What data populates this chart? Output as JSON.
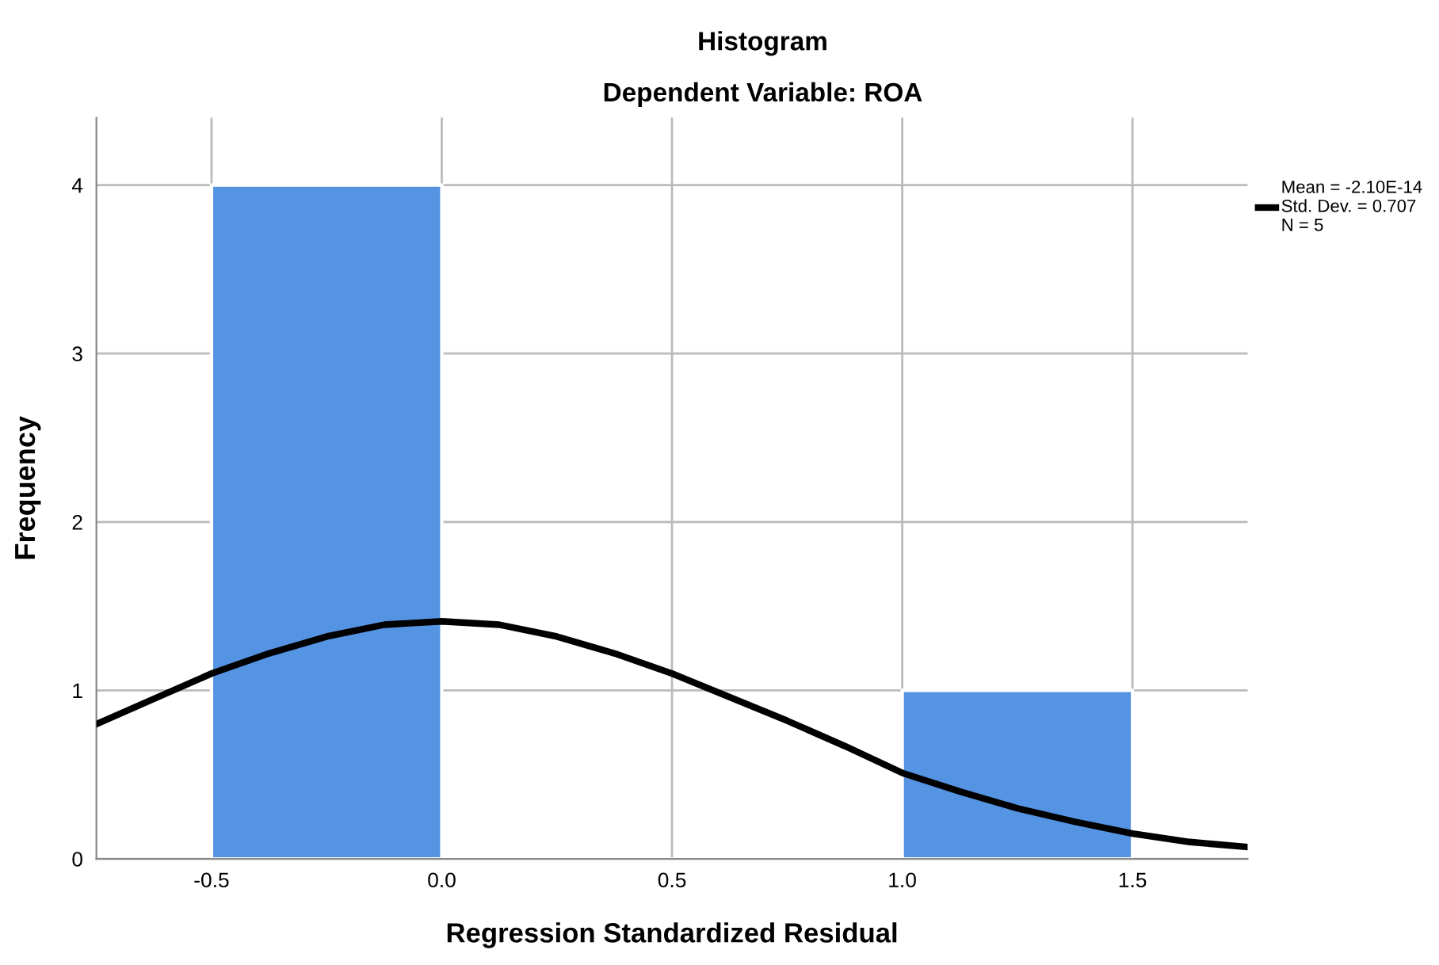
{
  "chart_data": {
    "type": "histogram",
    "title": "Histogram",
    "subtitle": "Dependent Variable: ROA",
    "xlabel": "Regression Standardized Residual",
    "ylabel": "Frequency",
    "bins": [
      -0.5,
      0.0,
      0.5,
      1.0,
      1.5
    ],
    "values": [
      4,
      0,
      0,
      1
    ],
    "color": "#5593e3",
    "series": [
      {
        "type": "line",
        "name": "Mean = -2.10E-14\nStd. Dev. = 0.707\nN = 5",
        "color": "#000000",
        "x": [
          -0.75,
          -0.625,
          -0.5,
          -0.375,
          -0.25,
          -0.125,
          0,
          0.125,
          0.25,
          0.375,
          0.5,
          0.625,
          0.75,
          0.875,
          1.0,
          1.125,
          1.25,
          1.375,
          1.5,
          1.625,
          1.75
        ],
        "values": [
          0.8,
          0.95,
          1.1,
          1.22,
          1.32,
          1.39,
          1.41,
          1.39,
          1.32,
          1.22,
          1.1,
          0.96,
          0.82,
          0.67,
          0.51,
          0.4,
          0.3,
          0.22,
          0.15,
          0.1,
          0.07
        ]
      }
    ],
    "xlim": [
      -0.75,
      1.75
    ],
    "xticks": [
      -0.5,
      {
        "value": 0,
        "label": "0.0"
      },
      0.5,
      {
        "value": 1,
        "label": "1.0"
      },
      1.5
    ],
    "ylim": [
      0,
      4.4
    ],
    "yticks": [
      0,
      1,
      2,
      3,
      4
    ],
    "grid": true,
    "legend": "top right",
    "line_style": "solid",
    "marker": "none"
  }
}
